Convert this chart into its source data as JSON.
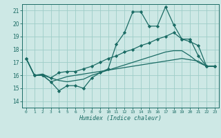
{
  "title": "",
  "xlabel": "Humidex (Indice chaleur)",
  "x_ticks": [
    0,
    1,
    2,
    3,
    4,
    5,
    6,
    7,
    8,
    9,
    10,
    11,
    12,
    13,
    14,
    15,
    16,
    17,
    18,
    19,
    20,
    21,
    22,
    23
  ],
  "ylim": [
    13.5,
    21.5
  ],
  "xlim": [
    -0.5,
    23.5
  ],
  "yticks": [
    14,
    15,
    16,
    17,
    18,
    19,
    20,
    21
  ],
  "bg_color": "#cde8e5",
  "grid_color": "#9ecdc8",
  "line_color": "#1a6b64",
  "line_width": 0.9,
  "marker_size": 2.2,
  "series1": [
    17.3,
    16.0,
    16.0,
    15.5,
    14.8,
    15.2,
    15.2,
    15.0,
    15.8,
    16.2,
    16.5,
    18.4,
    19.3,
    20.9,
    20.9,
    19.8,
    19.8,
    21.3,
    19.9,
    18.8,
    18.8,
    17.5,
    16.7,
    16.7
  ],
  "series2": [
    17.3,
    16.0,
    16.0,
    15.8,
    16.2,
    16.3,
    16.3,
    16.5,
    16.7,
    17.0,
    17.3,
    17.5,
    17.8,
    18.0,
    18.3,
    18.5,
    18.8,
    19.0,
    19.3,
    18.8,
    18.6,
    18.3,
    16.7,
    16.7
  ],
  "series3": [
    17.3,
    16.0,
    16.0,
    15.5,
    15.7,
    15.9,
    16.0,
    16.1,
    16.2,
    16.3,
    16.4,
    16.5,
    16.6,
    16.7,
    16.8,
    16.9,
    17.0,
    17.1,
    17.2,
    17.3,
    17.2,
    17.1,
    16.7,
    16.7
  ],
  "series4": [
    17.3,
    16.0,
    16.1,
    15.8,
    15.6,
    15.5,
    15.6,
    15.7,
    16.0,
    16.2,
    16.4,
    16.6,
    16.8,
    17.0,
    17.2,
    17.4,
    17.6,
    17.8,
    17.9,
    17.9,
    17.5,
    17.0,
    16.7,
    16.7
  ]
}
